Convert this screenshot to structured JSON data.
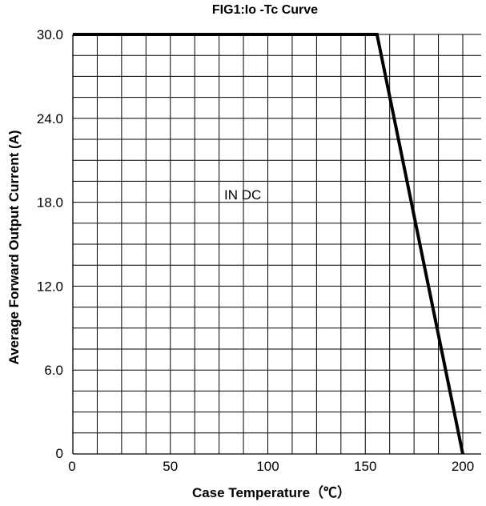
{
  "chart_data": {
    "type": "line",
    "title": "FIG1:Io -Tc Curve",
    "xlabel": "Case Temperature（℃）",
    "ylabel": "Average Forward Output Current (A)",
    "xlim": [
      0,
      200
    ],
    "ylim": [
      0,
      30
    ],
    "grid": true,
    "x_grid_step": 12.5,
    "y_grid_step": 1.5,
    "x_ticks": [
      {
        "value": 0,
        "label": "0"
      },
      {
        "value": 50,
        "label": "50"
      },
      {
        "value": 100,
        "label": "100"
      },
      {
        "value": 150,
        "label": "150"
      },
      {
        "value": 200,
        "label": "200"
      }
    ],
    "y_ticks": [
      {
        "value": 0,
        "label": "0"
      },
      {
        "value": 6,
        "label": "6.0"
      },
      {
        "value": 12,
        "label": "12.0"
      },
      {
        "value": 18,
        "label": "18.0"
      },
      {
        "value": 24,
        "label": "24.0"
      },
      {
        "value": 30,
        "label": "30.0"
      }
    ],
    "series": [
      {
        "x": [
          0,
          156,
          200
        ],
        "y": [
          30,
          30,
          0
        ]
      }
    ],
    "annotations": [
      {
        "text": "IN DC",
        "x": 78,
        "y": 19
      }
    ],
    "line_color": "#000000",
    "grid_color": "#000000"
  }
}
